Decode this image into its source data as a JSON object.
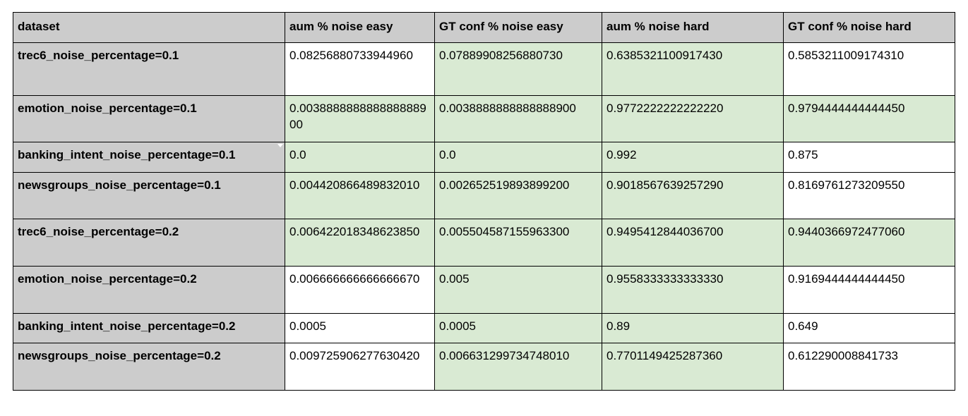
{
  "headers": [
    "dataset",
    "aum % noise easy",
    "GT conf % noise easy",
    "aum % noise hard",
    "GT conf % noise hard"
  ],
  "rows": [
    {
      "dataset": "trec6_noise_percentage=0.1",
      "aum_easy": "0.08256880733944960",
      "gt_easy": "0.07889908256880730",
      "aum_hard": "0.6385321100917430",
      "gt_hard": "0.5853211009174310"
    },
    {
      "dataset": "emotion_noise_percentage=0.1",
      "aum_easy": "0.003888888888888888900",
      "gt_easy": "0.0038888888888888900",
      "aum_hard": "0.9772222222222220",
      "gt_hard": "0.9794444444444450"
    },
    {
      "dataset": "banking_intent_noise_percentage=0.1",
      "aum_easy": "0.0",
      "gt_easy": "0.0",
      "aum_hard": "0.992",
      "gt_hard": "0.875"
    },
    {
      "dataset": "newsgroups_noise_percentage=0.1",
      "aum_easy": "0.004420866489832010",
      "gt_easy": "0.002652519893899200",
      "aum_hard": "0.9018567639257290",
      "gt_hard": "0.8169761273209550"
    },
    {
      "dataset": "trec6_noise_percentage=0.2",
      "aum_easy": "0.006422018348623850",
      "gt_easy": "0.005504587155963300",
      "aum_hard": "0.9495412844036700",
      "gt_hard": "0.9440366972477060"
    },
    {
      "dataset": "emotion_noise_percentage=0.2",
      "aum_easy": "0.006666666666666670",
      "gt_easy": "0.005",
      "aum_hard": "0.9558333333333330",
      "gt_hard": "0.9169444444444450"
    },
    {
      "dataset": "banking_intent_noise_percentage=0.2",
      "aum_easy": "0.0005",
      "gt_easy": "0.0005",
      "aum_hard": "0.89",
      "gt_hard": "0.649"
    },
    {
      "dataset": "newsgroups_noise_percentage=0.2",
      "aum_easy": "0.009725906277630420",
      "gt_easy": "0.006631299734748010",
      "aum_hard": "0.7701149425287360",
      "gt_hard": "0.612290008841733"
    }
  ],
  "colors": {
    "header_bg": "#cccccc",
    "highlight_green": "#d9ead3",
    "plain": "#ffffff",
    "border": "#000000"
  },
  "icons": {
    "filter": "dropdown-triangle"
  }
}
